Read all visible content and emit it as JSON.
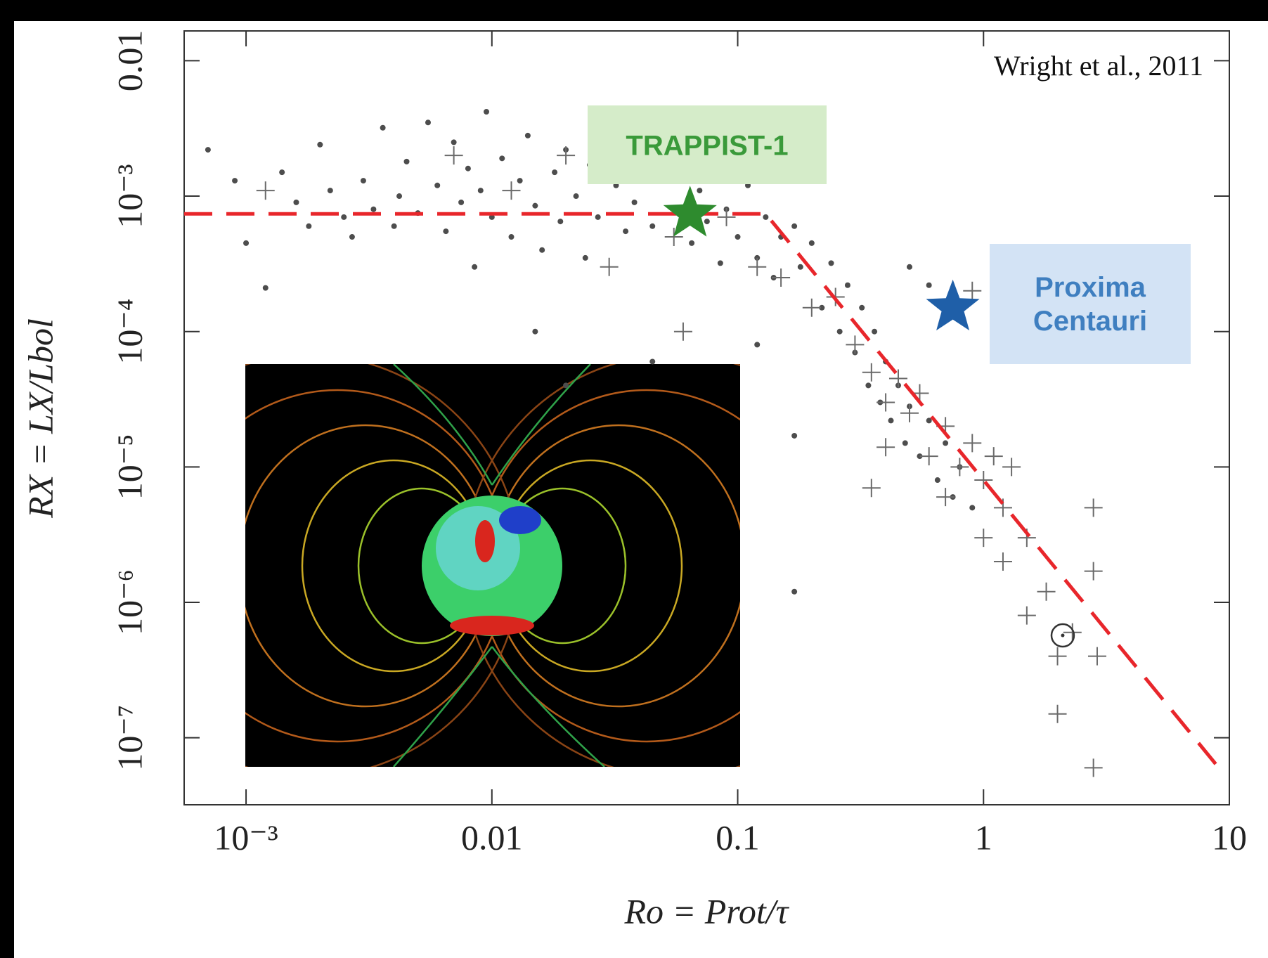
{
  "chart_data": {
    "type": "scatter",
    "xlabel": "Ro = Prot/τ",
    "ylabel": "RX = LX/Lbol",
    "xscale": "log",
    "yscale": "log",
    "xlim": [
      0.00056,
      10
    ],
    "ylim": [
      3.2e-08,
      0.0166
    ],
    "xticks": [
      {
        "value": 0.001,
        "label": "10⁻³"
      },
      0.01,
      0.1,
      1,
      10
    ],
    "yticks": [
      0.01,
      {
        "value": 0.001,
        "label": "10⁻³"
      },
      {
        "value": 0.0001,
        "label": "10⁻⁴"
      },
      {
        "value": 1e-05,
        "label": "10⁻⁵"
      },
      {
        "value": 1e-06,
        "label": "10⁻⁶"
      },
      {
        "value": 1e-07,
        "label": "10⁻⁷"
      }
    ],
    "series": [
      {
        "marker": "dot",
        "color": "#4d4d4d",
        "x": [
          0.0007,
          0.0009,
          0.001,
          0.0012,
          0.0014,
          0.0016,
          0.0018,
          0.002,
          0.0022,
          0.0025,
          0.0027,
          0.003,
          0.0033,
          0.0036,
          0.004,
          0.0042,
          0.0045,
          0.005,
          0.0055,
          0.006,
          0.0065,
          0.007,
          0.0075,
          0.008,
          0.0085,
          0.009,
          0.0095,
          0.01,
          0.011,
          0.012,
          0.013,
          0.014,
          0.015,
          0.016,
          0.018,
          0.019,
          0.02,
          0.022,
          0.024,
          0.025,
          0.027,
          0.03,
          0.032,
          0.035,
          0.038,
          0.04,
          0.045,
          0.05,
          0.055,
          0.06,
          0.065,
          0.07,
          0.075,
          0.08,
          0.085,
          0.09,
          0.1,
          0.11,
          0.12,
          0.13,
          0.14,
          0.15,
          0.17,
          0.18,
          0.2,
          0.22,
          0.24,
          0.26,
          0.28,
          0.3,
          0.32,
          0.34,
          0.36,
          0.38,
          0.4,
          0.42,
          0.45,
          0.48,
          0.5,
          0.55,
          0.6,
          0.65,
          0.7,
          0.75,
          0.8,
          0.9,
          0.6,
          0.17,
          0.045,
          0.02,
          0.17,
          0.5,
          0.12,
          0.015
        ],
        "y": [
          0.0022,
          0.0013,
          0.00045,
          0.00021,
          0.0015,
          0.0009,
          0.0006,
          0.0024,
          0.0011,
          0.0007,
          0.0005,
          0.0013,
          0.0008,
          0.0032,
          0.0006,
          0.001,
          0.0018,
          0.00075,
          0.0035,
          0.0012,
          0.00055,
          0.0025,
          0.0009,
          0.0016,
          0.0003,
          0.0011,
          0.0042,
          0.0007,
          0.0019,
          0.0005,
          0.0013,
          0.0028,
          0.00085,
          0.0004,
          0.0015,
          0.00065,
          0.0022,
          0.001,
          0.00035,
          0.0017,
          0.0007,
          0.0026,
          0.0012,
          0.00055,
          0.0009,
          0.0019,
          0.0006,
          0.0013,
          0.0008,
          0.003,
          0.00045,
          0.0011,
          0.00065,
          0.0016,
          0.00032,
          0.0008,
          0.0005,
          0.0012,
          0.00035,
          0.0007,
          0.00025,
          0.0005,
          0.0006,
          0.0003,
          0.00045,
          0.00015,
          0.00032,
          0.0001,
          0.00022,
          7e-05,
          0.00015,
          4e-05,
          0.0001,
          3e-05,
          6e-05,
          2.2e-05,
          4e-05,
          1.5e-05,
          2.8e-05,
          1.2e-05,
          2.2e-05,
          8e-06,
          1.5e-05,
          6e-06,
          1e-05,
          5e-06,
          0.00022,
          1.2e-06,
          6e-05,
          4e-05,
          1.7e-05,
          0.0003,
          8e-05,
          0.0001
        ]
      },
      {
        "marker": "plus",
        "color": "#6a6a6a",
        "x": [
          0.0012,
          0.007,
          0.012,
          0.02,
          0.03,
          0.06,
          0.055,
          0.09,
          0.12,
          0.15,
          0.2,
          0.25,
          0.3,
          0.35,
          0.4,
          0.45,
          0.5,
          0.55,
          0.6,
          0.7,
          0.8,
          0.9,
          1.0,
          1.1,
          1.2,
          1.3,
          0.35,
          0.4,
          0.7,
          1.0,
          1.2,
          1.5,
          1.8,
          1.5,
          2.0,
          2.8,
          2.8,
          2.0,
          2.8,
          2.3,
          2.9,
          0.9
        ],
        "y": [
          0.0011,
          0.002,
          0.0011,
          0.002,
          0.0003,
          0.0001,
          0.0005,
          0.0007,
          0.0003,
          0.00025,
          0.00015,
          0.00018,
          8e-05,
          5e-05,
          3e-05,
          4.5e-05,
          2.5e-05,
          3.5e-05,
          1.2e-05,
          2e-05,
          1e-05,
          1.5e-05,
          8e-06,
          1.2e-05,
          5e-06,
          1e-05,
          7e-06,
          1.4e-05,
          6e-06,
          3e-06,
          2e-06,
          3e-06,
          1.2e-06,
          8e-07,
          4e-07,
          5e-06,
          1.7e-06,
          1.5e-07,
          6e-08,
          6e-07,
          4e-07,
          0.0002
        ]
      },
      {
        "marker": "dashed-line",
        "color": "#e8262b",
        "x": [
          0.00056,
          0.13,
          8.8
        ],
        "y": [
          0.00074,
          0.00074,
          6.4e-08
        ]
      },
      {
        "marker": "sun",
        "color": "#333333",
        "x": [
          2.1
        ],
        "y": [
          5.7e-07
        ]
      }
    ],
    "annotations": [
      {
        "text": "Wright et al., 2011"
      },
      {
        "text": "TRAPPIST-1",
        "x": 0.064,
        "y": 0.00074,
        "color": "#2e8b2e",
        "box_color": "#d5ecc9",
        "text_color": "#3a9a3a"
      },
      {
        "text": "Proxima Centauri",
        "x": 0.75,
        "y": 0.00015,
        "color": "#1f5fa8",
        "box_color": "#d3e3f5",
        "text_color": "#3f7fc0"
      }
    ]
  }
}
